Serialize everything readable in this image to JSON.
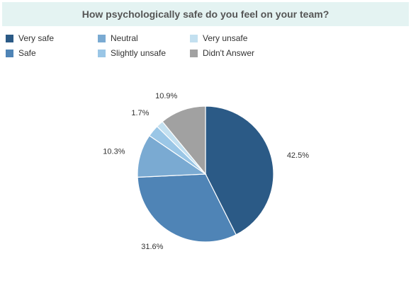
{
  "title": "How psychologically safe do you feel on your team?",
  "legend": [
    {
      "label": "Very safe",
      "color": "#2b5a86"
    },
    {
      "label": "Neutral",
      "color": "#7aaad2"
    },
    {
      "label": "Very unsafe",
      "color": "#c3e0f0"
    },
    {
      "label": "Safe",
      "color": "#4f84b6"
    },
    {
      "label": "Slightly unsafe",
      "color": "#9ac6e6"
    },
    {
      "label": "Didn't Answer",
      "color": "#a1a1a1"
    }
  ],
  "chart_data": {
    "type": "pie",
    "title": "How psychologically safe do you feel on your team?",
    "slices": [
      {
        "label": "Very safe",
        "value": 42.5,
        "color": "#2b5a86",
        "display": "42.5%"
      },
      {
        "label": "Safe",
        "value": 31.6,
        "color": "#4f84b6",
        "display": "31.6%"
      },
      {
        "label": "Neutral",
        "value": 10.3,
        "color": "#7aaad2",
        "display": "10.3%"
      },
      {
        "label": "Slightly unsafe",
        "value": 2.8,
        "color": "#9ac6e6",
        "display": ""
      },
      {
        "label": "Very unsafe",
        "value": 1.7,
        "color": "#c3e0f0",
        "display": "1.7%"
      },
      {
        "label": "Didn't Answer",
        "value": 10.9,
        "color": "#a1a1a1",
        "display": "10.9%"
      }
    ],
    "legend_position": "top-left"
  }
}
